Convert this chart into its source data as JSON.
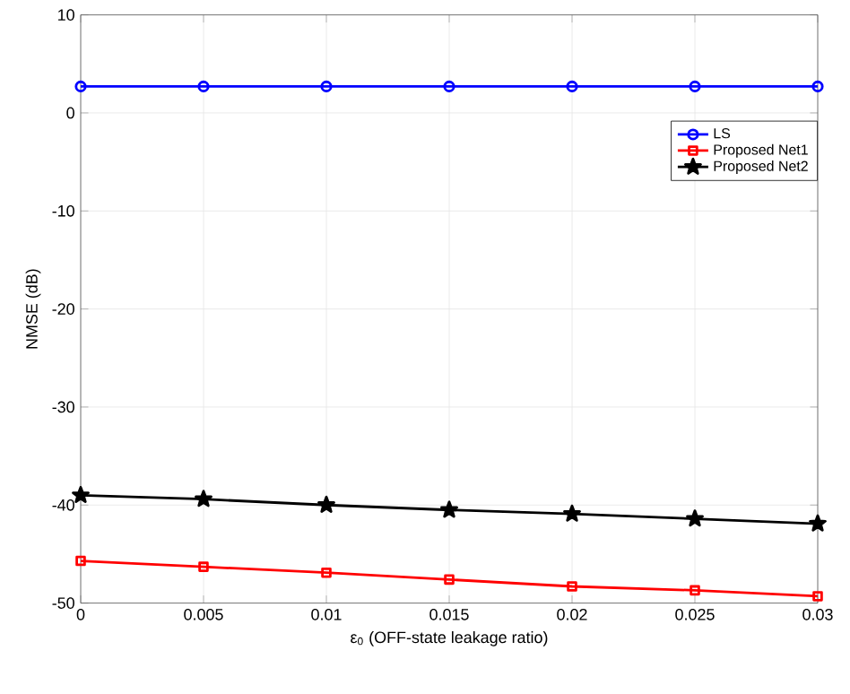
{
  "chart_data": {
    "type": "line",
    "xlabel": "ε$_{0}$ (OFF-state leakage ratio)",
    "ylabel": "NMSE (dB)",
    "x": [
      0,
      0.005,
      0.01,
      0.015,
      0.02,
      0.025,
      0.03
    ],
    "series": [
      {
        "name": "LS",
        "color": "#0000ff",
        "marker": "circle",
        "values": [
          2.7,
          2.7,
          2.7,
          2.7,
          2.7,
          2.7,
          2.7
        ]
      },
      {
        "name": "Proposed Net1",
        "color": "#ff0000",
        "marker": "square",
        "values": [
          -45.7,
          -46.3,
          -46.9,
          -47.6,
          -48.3,
          -48.7,
          -49.3
        ]
      },
      {
        "name": "Proposed Net2",
        "color": "#000000",
        "marker": "star",
        "values": [
          -39.0,
          -39.4,
          -40.0,
          -40.5,
          -40.9,
          -41.4,
          -41.9
        ]
      }
    ],
    "xlim": [
      0,
      0.03
    ],
    "ylim": [
      -50,
      10
    ],
    "xticks": [
      0,
      0.005,
      0.01,
      0.015,
      0.02,
      0.025,
      0.03
    ],
    "yticks": [
      -50,
      -40,
      -30,
      -20,
      -10,
      0,
      10
    ],
    "grid": true,
    "legend": "top right",
    "line_style": "solid"
  }
}
